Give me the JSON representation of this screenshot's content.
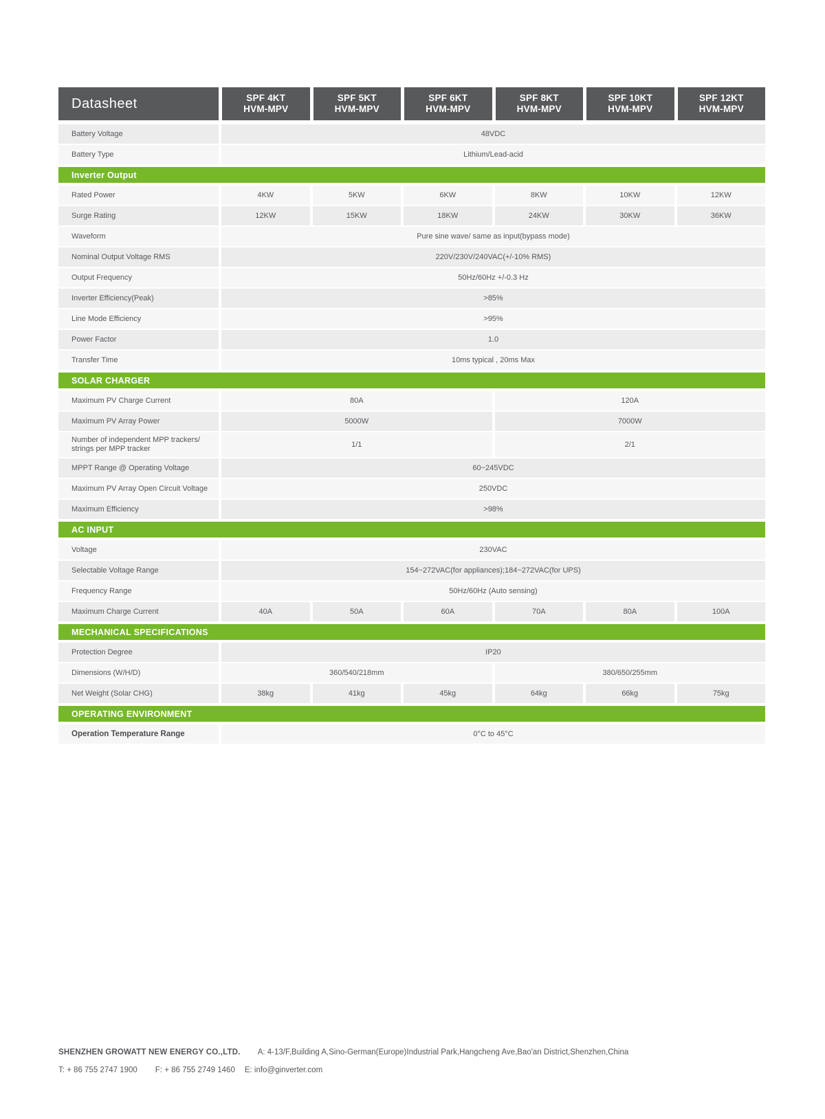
{
  "colors": {
    "green": "#76b82a",
    "dark_header": "#58595b",
    "row_dark": "#ececed",
    "row_light": "#f6f6f7"
  },
  "table": {
    "corner_label": "Datasheet",
    "columns": [
      {
        "model": "SPF 4KT",
        "variant": "HVM-MPV"
      },
      {
        "model": "SPF 5KT",
        "variant": "HVM-MPV"
      },
      {
        "model": "SPF 6KT",
        "variant": "HVM-MPV"
      },
      {
        "model": "SPF 8KT",
        "variant": "HVM-MPV"
      },
      {
        "model": "SPF 10KT",
        "variant": "HVM-MPV"
      },
      {
        "model": "SPF 12KT",
        "variant": "HVM-MPV"
      }
    ],
    "sections": [
      {
        "header": null,
        "rows": [
          {
            "label": "Battery Voltage",
            "type": "full",
            "values": [
              "48VDC"
            ],
            "shade": "dark"
          },
          {
            "label": "Battery Type",
            "type": "full",
            "values": [
              "Lithium/Lead-acid"
            ],
            "shade": "light"
          }
        ]
      },
      {
        "header": "Inverter Output",
        "rows": [
          {
            "label": "Rated Power",
            "type": "cols",
            "values": [
              "4KW",
              "5KW",
              "6KW",
              "8KW",
              "10KW",
              "12KW"
            ],
            "shade": "light"
          },
          {
            "label": "Surge Rating",
            "type": "cols",
            "values": [
              "12KW",
              "15KW",
              "18KW",
              "24KW",
              "30KW",
              "36KW"
            ],
            "shade": "dark"
          },
          {
            "label": "Waveform",
            "type": "full",
            "values": [
              "Pure sine wave/ same as input(bypass mode)"
            ],
            "shade": "light"
          },
          {
            "label": "Nominal Output Voltage RMS",
            "type": "full",
            "values": [
              "220V/230V/240VAC(+/-10% RMS)"
            ],
            "shade": "dark"
          },
          {
            "label": "Output Frequency",
            "type": "full",
            "values": [
              "50Hz/60Hz +/-0.3 Hz"
            ],
            "shade": "light"
          },
          {
            "label": "Inverter Efficiency(Peak)",
            "type": "full",
            "values": [
              ">85%"
            ],
            "shade": "dark"
          },
          {
            "label": "Line Mode Efficiency",
            "type": "full",
            "values": [
              ">95%"
            ],
            "shade": "light"
          },
          {
            "label": "Power Factor",
            "type": "full",
            "values": [
              "1.0"
            ],
            "shade": "dark"
          },
          {
            "label": "Transfer Time",
            "type": "full",
            "values": [
              "10ms typical , 20ms Max"
            ],
            "shade": "light"
          }
        ]
      },
      {
        "header": "SOLAR CHARGER",
        "rows": [
          {
            "label": "Maximum PV Charge Current",
            "type": "half",
            "values": [
              "80A",
              "120A"
            ],
            "shade": "light"
          },
          {
            "label": "Maximum PV Array Power",
            "type": "half",
            "values": [
              "5000W",
              "7000W"
            ],
            "shade": "dark"
          },
          {
            "label": "Number of independent MPP trackers/",
            "label2": "strings per MPP tracker",
            "type": "half",
            "values": [
              "1/1",
              "2/1"
            ],
            "shade": "light",
            "tall": true
          },
          {
            "label": "MPPT Range @ Operating Voltage",
            "type": "full",
            "values": [
              "60~245VDC"
            ],
            "shade": "dark"
          },
          {
            "label": "Maximum PV Array Open Circuit Voltage",
            "type": "full",
            "values": [
              "250VDC"
            ],
            "shade": "light"
          },
          {
            "label": "Maximum Efficiency",
            "type": "full",
            "values": [
              ">98%"
            ],
            "shade": "dark"
          }
        ]
      },
      {
        "header": "AC INPUT",
        "rows": [
          {
            "label": "Voltage",
            "type": "full",
            "values": [
              "230VAC"
            ],
            "shade": "light"
          },
          {
            "label": "Selectable Voltage Range",
            "type": "full",
            "values": [
              "154~272VAC(for appliances);184~272VAC(for UPS)"
            ],
            "shade": "dark"
          },
          {
            "label": "Frequency Range",
            "type": "full",
            "values": [
              "50Hz/60Hz (Auto sensing)"
            ],
            "shade": "light"
          },
          {
            "label": "Maximum Charge Current",
            "type": "cols",
            "values": [
              "40A",
              "50A",
              "60A",
              "70A",
              "80A",
              "100A"
            ],
            "shade": "dark"
          }
        ]
      },
      {
        "header": "MECHANICAL SPECIFICATIONS",
        "rows": [
          {
            "label": "Protection Degree",
            "type": "full",
            "values": [
              "IP20"
            ],
            "shade": "dark"
          },
          {
            "label": "Dimensions (W/H/D)",
            "type": "half",
            "values": [
              "360/540/218mm",
              "380/650/255mm"
            ],
            "shade": "light"
          },
          {
            "label": "Net Weight (Solar CHG)",
            "type": "cols",
            "values": [
              "38kg",
              "41kg",
              "45kg",
              "64kg",
              "66kg",
              "75kg"
            ],
            "shade": "dark"
          }
        ]
      },
      {
        "header": "OPERATING ENVIRONMENT",
        "rows": [
          {
            "label": "Operation Temperature Range",
            "type": "full",
            "values": [
              "0°C to 45°C"
            ],
            "shade": "light",
            "emph": true
          }
        ]
      }
    ]
  },
  "footer": {
    "company": "SHENZHEN GROWATT NEW ENERGY CO.,LTD.",
    "address": "A: 4-13/F,Building A,Sino-German(Europe)Industrial Park,Hangcheng Ave,Bao'an District,Shenzhen,China",
    "tel": "T:  + 86 755 2747 1900",
    "fax": "F:  + 86 755 2749 1460",
    "email": "E:  info@ginverter.com"
  }
}
